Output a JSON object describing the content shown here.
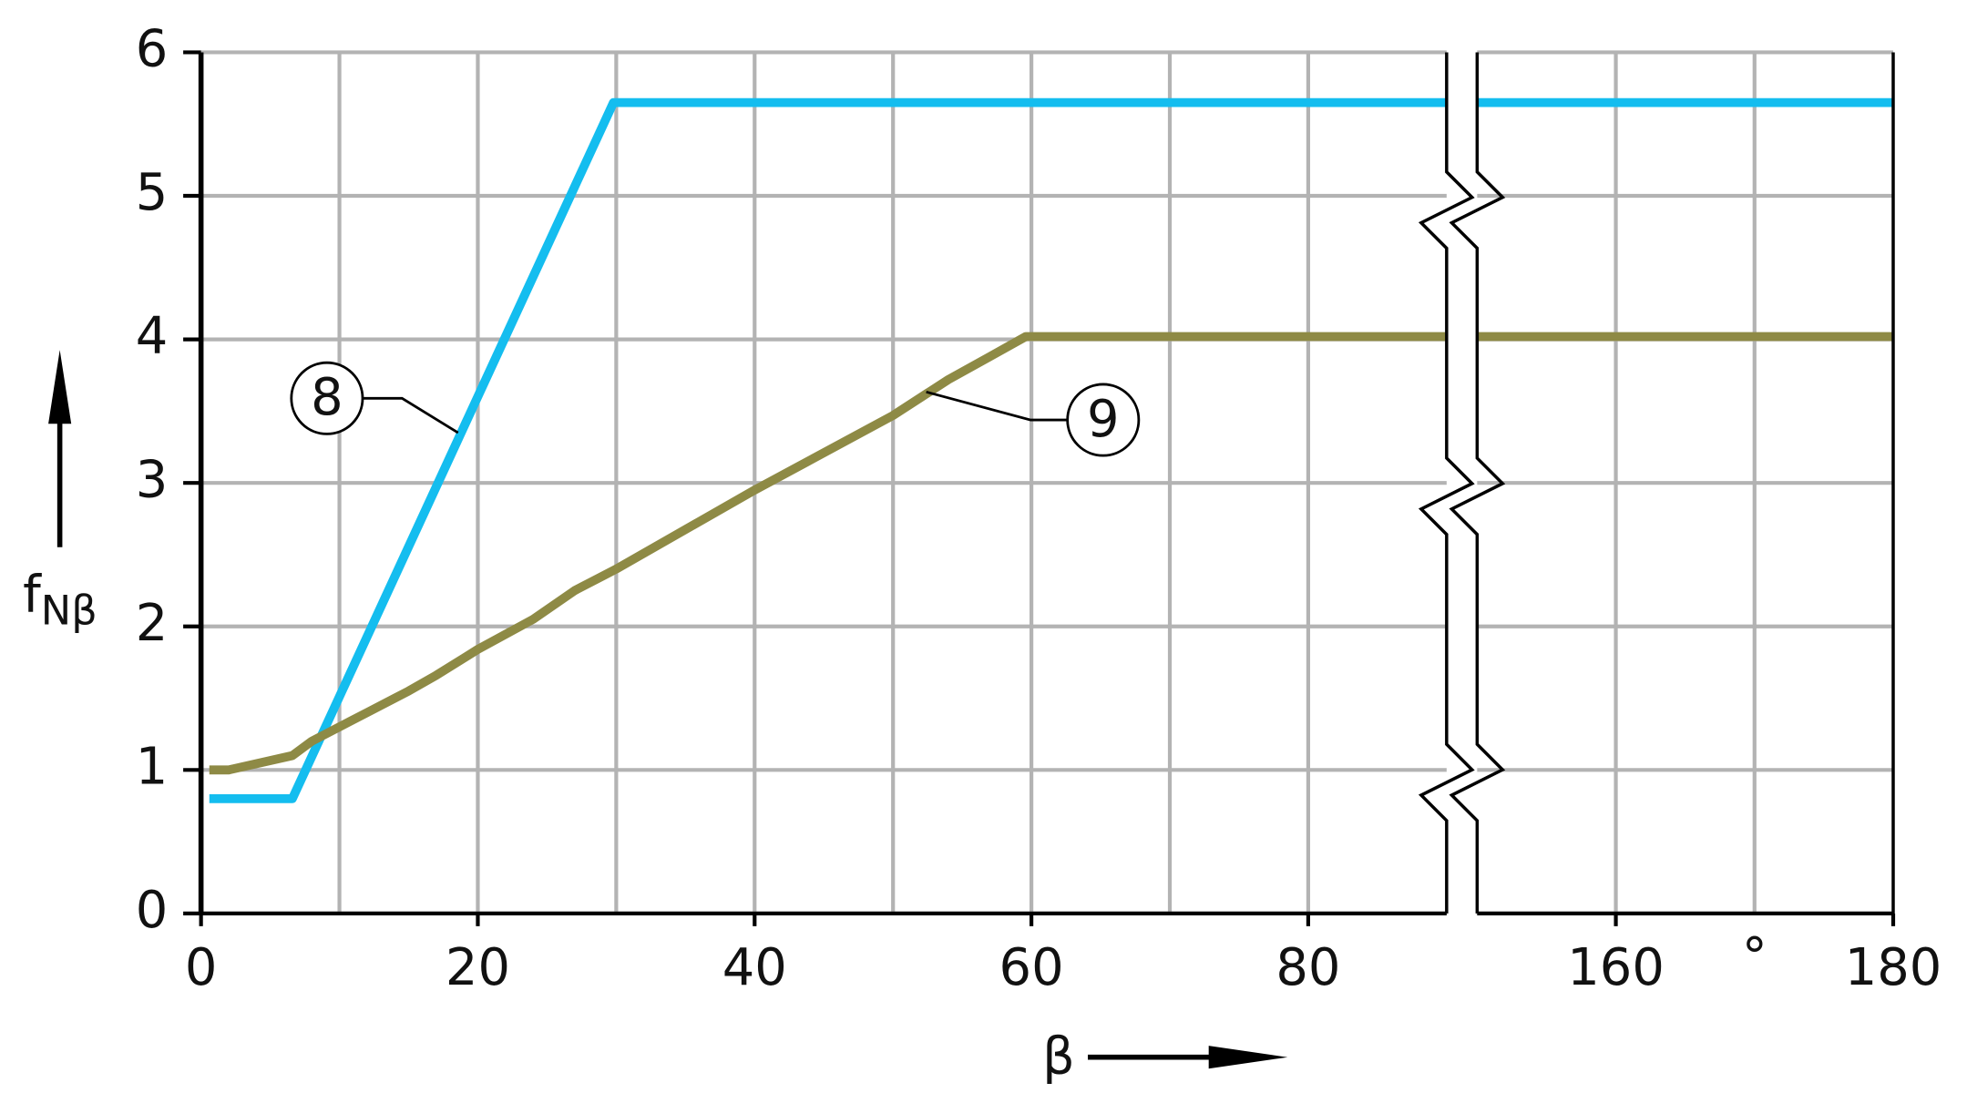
{
  "chart_data": {
    "type": "line",
    "x_label": "β",
    "y_label": "f",
    "y_label_sub": "Nβ",
    "x_unit": "°",
    "xlim": [
      0,
      180
    ],
    "xbreak": [
      90,
      150
    ],
    "xticks": [
      0,
      20,
      40,
      60,
      80,
      160,
      180
    ],
    "xgrid": [
      10,
      20,
      30,
      40,
      50,
      60,
      70,
      80,
      160,
      170
    ],
    "ylim": [
      0,
      6
    ],
    "yticks": [
      0,
      1,
      2,
      3,
      4,
      5,
      6
    ],
    "grid": true,
    "series": [
      {
        "name": "8",
        "color": "#14bdef",
        "x": [
          0.6,
          6.6,
          29.8,
          90,
          150,
          180
        ],
        "values": [
          0.8,
          0.8,
          5.65,
          5.65,
          5.65,
          5.65
        ]
      },
      {
        "name": "9",
        "color": "#8e8a45",
        "x": [
          0.6,
          2,
          6.6,
          8,
          12,
          15,
          17,
          20,
          24,
          27,
          30,
          40,
          50,
          54,
          57,
          59.6,
          90,
          150,
          180
        ],
        "values": [
          1.0,
          1.0,
          1.1,
          1.2,
          1.4,
          1.55,
          1.66,
          1.84,
          2.05,
          2.25,
          2.4,
          2.95,
          3.47,
          3.72,
          3.88,
          4.02,
          4.02,
          4.02,
          4.02
        ]
      }
    ]
  }
}
